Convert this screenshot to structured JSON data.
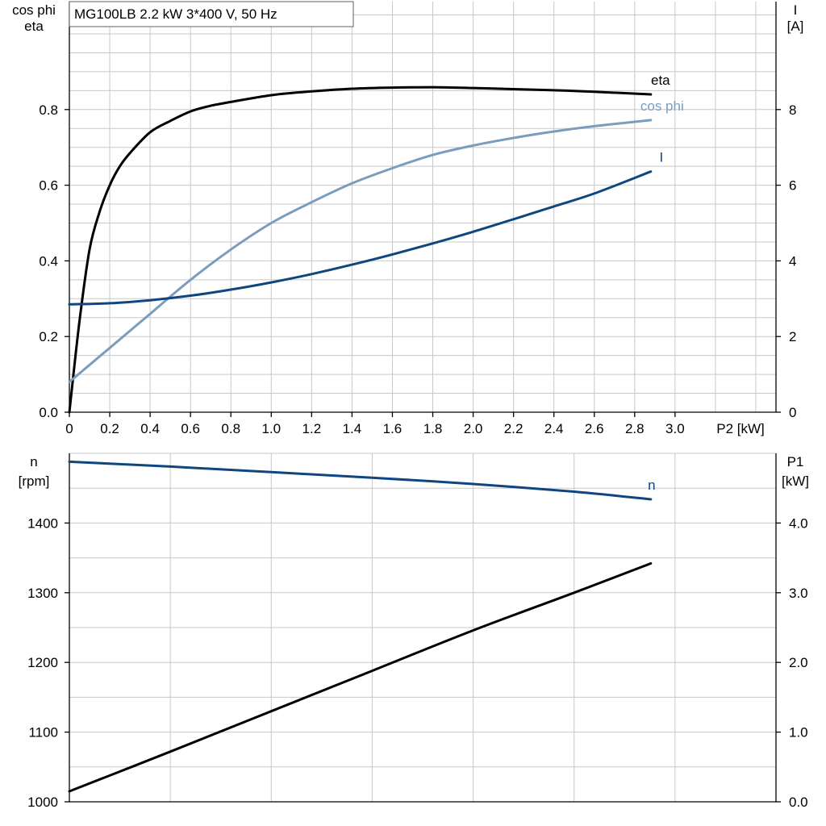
{
  "colors": {
    "black": "#000000",
    "cosphi": "#7a9dbd",
    "current": "#0f4680",
    "speed": "#0f4680",
    "grid": "#c8c8c8"
  },
  "chart_data": [
    {
      "type": "line",
      "title": "MG100LB   2.2 kW   3*400 V, 50 Hz",
      "xlabel": "P2 [kW]",
      "ylabel_left_top": "cos phi",
      "ylabel_left_bottom": "eta",
      "ylabel_right_top": "I",
      "ylabel_right_bottom": "[A]",
      "xlim": [
        0,
        3.5
      ],
      "ylim_left": [
        0,
        1.0
      ],
      "ylim_right": [
        0,
        10
      ],
      "x_ticks": [
        0,
        0.2,
        0.4,
        0.6,
        0.8,
        1.0,
        1.2,
        1.4,
        1.6,
        1.8,
        2.0,
        2.2,
        2.4,
        2.6,
        2.8,
        3.0
      ],
      "x_tick_labels": [
        "0",
        "0.2",
        "0.4",
        "0.6",
        "0.8",
        "1.0",
        "1.2",
        "1.4",
        "1.6",
        "1.8",
        "2.0",
        "2.2",
        "2.4",
        "2.6",
        "2.8",
        "3.0"
      ],
      "y_left_ticks": [
        0,
        0.2,
        0.4,
        0.6,
        0.8
      ],
      "y_left_tick_labels": [
        "0.0",
        "0.2",
        "0.4",
        "0.6",
        "0.8"
      ],
      "y_right_ticks": [
        0,
        2,
        4,
        6,
        8
      ],
      "y_right_tick_labels": [
        "0",
        "2",
        "4",
        "6",
        "8"
      ],
      "grid": true,
      "series": [
        {
          "name": "eta",
          "axis": "left",
          "color": "#000000",
          "x": [
            0,
            0.05,
            0.1,
            0.15,
            0.2,
            0.25,
            0.3,
            0.4,
            0.5,
            0.6,
            0.7,
            0.8,
            1.0,
            1.2,
            1.4,
            1.6,
            1.8,
            2.0,
            2.2,
            2.4,
            2.6,
            2.88
          ],
          "y": [
            0,
            0.24,
            0.43,
            0.53,
            0.6,
            0.65,
            0.685,
            0.74,
            0.77,
            0.795,
            0.81,
            0.82,
            0.838,
            0.848,
            0.855,
            0.858,
            0.859,
            0.857,
            0.854,
            0.851,
            0.847,
            0.84
          ]
        },
        {
          "name": "cos phi",
          "axis": "left",
          "color": "#7a9dbd",
          "x": [
            0,
            0.2,
            0.4,
            0.6,
            0.8,
            1.0,
            1.2,
            1.4,
            1.6,
            1.8,
            2.0,
            2.2,
            2.4,
            2.6,
            2.88
          ],
          "y": [
            0.08,
            0.17,
            0.26,
            0.35,
            0.43,
            0.5,
            0.555,
            0.605,
            0.645,
            0.68,
            0.705,
            0.725,
            0.742,
            0.756,
            0.772
          ]
        },
        {
          "name": "I",
          "axis": "right",
          "color": "#0f4680",
          "x": [
            0,
            0.2,
            0.4,
            0.6,
            0.8,
            1.0,
            1.2,
            1.4,
            1.6,
            1.8,
            2.0,
            2.2,
            2.4,
            2.6,
            2.88
          ],
          "y": [
            2.85,
            2.88,
            2.96,
            3.08,
            3.24,
            3.43,
            3.65,
            3.9,
            4.17,
            4.46,
            4.77,
            5.1,
            5.44,
            5.78,
            6.36
          ]
        }
      ]
    },
    {
      "type": "line",
      "ylabel_left_top": "n",
      "ylabel_left_bottom": "[rpm]",
      "ylabel_right_top": "P1",
      "ylabel_right_bottom": "[kW]",
      "xlim": [
        0,
        3.5
      ],
      "ylim_left": [
        1000,
        1500
      ],
      "ylim_right": [
        0,
        5.0
      ],
      "y_left_ticks": [
        1000,
        1100,
        1200,
        1300,
        1400
      ],
      "y_left_tick_labels": [
        "1000",
        "1100",
        "1200",
        "1300",
        "1400"
      ],
      "y_right_ticks": [
        0,
        1,
        2,
        3,
        4
      ],
      "y_right_tick_labels": [
        "0.0",
        "1.0",
        "2.0",
        "3.0",
        "4.0"
      ],
      "grid": true,
      "series": [
        {
          "name": "n",
          "axis": "left",
          "color": "#0f4680",
          "x": [
            0,
            0.5,
            1.0,
            1.5,
            2.0,
            2.5,
            2.88
          ],
          "y": [
            1488,
            1481,
            1473,
            1465,
            1456,
            1445,
            1434
          ]
        },
        {
          "name": "",
          "axis": "right",
          "color": "#000000",
          "x": [
            0,
            0.5,
            1.0,
            1.5,
            2.0,
            2.5,
            2.88
          ],
          "y": [
            0.15,
            0.72,
            1.3,
            1.88,
            2.46,
            3.0,
            3.42
          ]
        }
      ]
    }
  ]
}
